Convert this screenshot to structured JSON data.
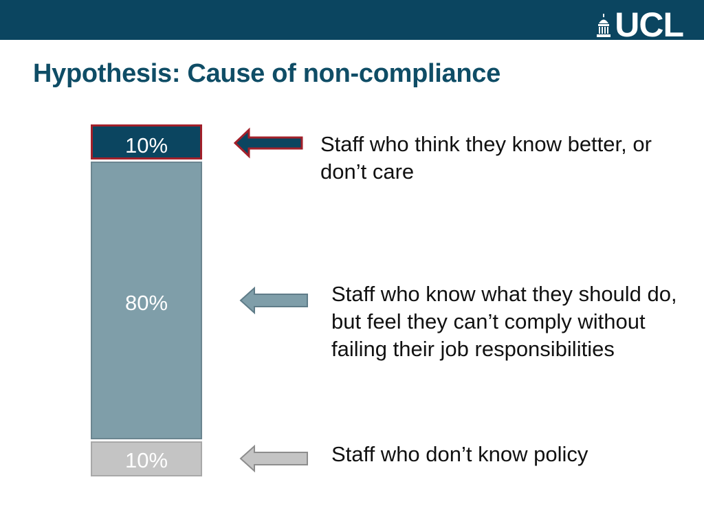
{
  "header": {
    "logo_text": "UCL",
    "logo_icon": "portico-icon",
    "bar_color": "#0b4560"
  },
  "title": "Hypothesis: Cause of non-compliance",
  "segments": [
    {
      "percent": "10%",
      "value": 10,
      "fill": "#0b4560",
      "border": "#a2202a",
      "description": "Staff who think they know better, or don’t care"
    },
    {
      "percent": "80%",
      "value": 80,
      "fill": "#7f9ea9",
      "border": "#6b8590",
      "description": "Staff who know what they should do, but feel they can’t comply without failing their job responsibilities"
    },
    {
      "percent": "10%",
      "value": 10,
      "fill": "#c4c4c4",
      "border": "#a8a8a8",
      "description": "Staff who don’t know policy"
    }
  ]
}
